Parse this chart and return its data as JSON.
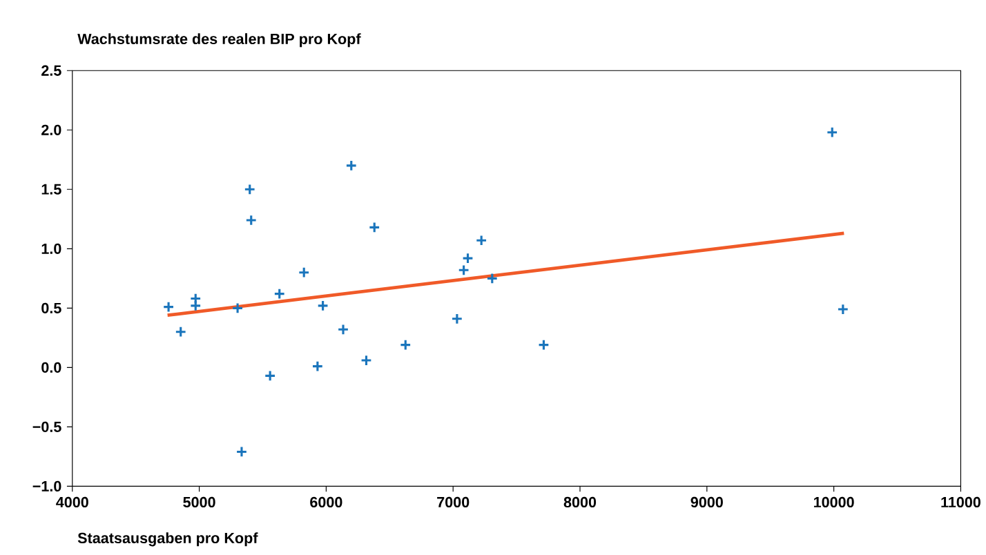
{
  "chart_data": {
    "type": "scatter",
    "xlabel": "Staatsausgaben pro Kopf",
    "ylabel": "Wachstumsrate des realen BIP pro Kopf",
    "xlim": [
      4000,
      11000
    ],
    "xticks": [
      4000,
      5000,
      6000,
      7000,
      8000,
      9000,
      10000,
      11000
    ],
    "ylim": [
      -1.0,
      2.5
    ],
    "yticks": [
      {
        "value": -1.0,
        "label": "−1.0"
      },
      {
        "value": -0.5,
        "label": "−0.5"
      },
      {
        "value": 0,
        "label": "0.0"
      },
      {
        "value": 0.5,
        "label": "0.5"
      },
      {
        "value": 1.0,
        "label": "1.0"
      },
      {
        "value": 1.5,
        "label": "1.5"
      },
      {
        "value": 2.0,
        "label": "2.0"
      },
      {
        "value": 2.5,
        "label": "2.5"
      }
    ],
    "grid": false,
    "series": [
      {
        "color": "#1a75bc",
        "marker": "cross",
        "x": [
          4758,
          4854,
          4971,
          4971,
          5302,
          5398,
          5409,
          5334,
          5558,
          5632,
          5825,
          5974,
          5932,
          6134,
          6198,
          6316,
          6380,
          6625,
          7031,
          7084,
          7116,
          7223,
          7308,
          7714,
          9987,
          10072
        ],
        "values": [
          0.51,
          0.3,
          0.58,
          0.52,
          0.5,
          1.5,
          1.24,
          -0.71,
          -0.07,
          0.62,
          0.8,
          0.52,
          0.01,
          0.32,
          1.7,
          0.06,
          1.18,
          0.19,
          0.41,
          0.82,
          0.92,
          1.07,
          0.75,
          0.19,
          1.98,
          0.49
        ]
      },
      {
        "type": "line",
        "color": "#f05a28",
        "marker": "none",
        "x": [
          4750,
          10080
        ],
        "values": [
          0.44,
          1.13
        ]
      }
    ]
  }
}
